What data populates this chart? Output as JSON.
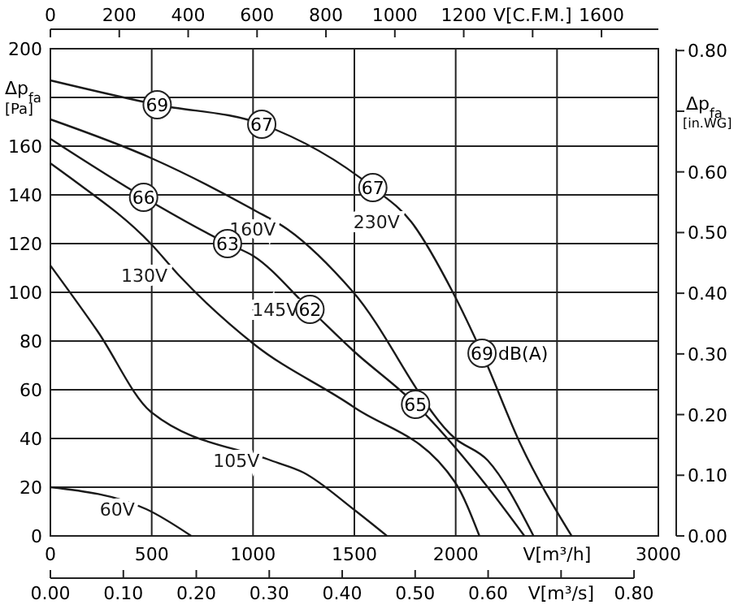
{
  "chart_data": {
    "type": "line",
    "xlabel": "V[m³/h]",
    "ylabel": "Δp$_{fa}$ [Pa]",
    "y2label": "Δp$_{fa}$ [in.WG]",
    "x2label": "V[C.F.M.]",
    "xlim": [
      0,
      3000
    ],
    "xticks": [
      0,
      500,
      1000,
      1500,
      2000,
      {
        "value": 2500,
        "label": null
      },
      3000
    ],
    "ylim": [
      0,
      200
    ],
    "yticks": [
      0,
      20,
      40,
      60,
      80,
      100,
      120,
      140,
      160,
      {
        "value": 180,
        "label": null
      },
      200
    ],
    "y2lim": [
      0,
      0.803
    ],
    "y2ticks": [
      {
        "value": 0,
        "label": "0.00"
      },
      {
        "value": 0.1,
        "label": "0.10"
      },
      {
        "value": 0.2,
        "label": "0.20"
      },
      {
        "value": 0.3,
        "label": "0.30"
      },
      {
        "value": 0.4,
        "label": "0.40"
      },
      {
        "value": 0.5,
        "label": "0.50"
      },
      {
        "value": 0.6,
        "label": "0.60"
      },
      {
        "value": 0.7,
        "label": null
      },
      {
        "value": 0.8,
        "label": "0.80"
      }
    ],
    "x2lim": [
      0,
      1765
    ],
    "x2ticks": [
      0,
      200,
      400,
      600,
      800,
      1000,
      1200,
      {
        "value": 1400,
        "label": null
      },
      1600
    ],
    "grid": true,
    "series": [
      {
        "name": "230V",
        "color": "#1a1a1a",
        "x": [
          0,
          527,
          1043,
          1591,
          1780,
          1986,
          2130,
          2318,
          2572
        ],
        "values": [
          187,
          177,
          169,
          143,
          129,
          100,
          75,
          38,
          0
        ]
      },
      {
        "name": "160V",
        "color": "#1a1a1a",
        "x": [
          0,
          500,
          1000,
          1168,
          1495,
          1997,
          2158,
          2384
        ],
        "values": [
          171,
          155,
          134,
          126,
          100,
          40,
          31,
          0
        ]
      },
      {
        "name": "145V",
        "color": "#1a1a1a",
        "x": [
          0,
          460,
          874,
          1000,
          1281,
          1495,
          1802,
          2158,
          2339
        ],
        "values": [
          163,
          139,
          120,
          115,
          93,
          76,
          54,
          20,
          0
        ]
      },
      {
        "name": "130V",
        "color": "#1a1a1a",
        "x": [
          0,
          99,
          495,
          634,
          1000,
          1495,
          1997,
          2117
        ],
        "values": [
          153,
          147,
          120,
          107,
          79,
          53,
          22,
          0
        ]
      },
      {
        "name": "105V",
        "color": "#1a1a1a",
        "x": [
          0,
          233,
          495,
          1088,
          1249,
          1495,
          1661
        ],
        "values": [
          111,
          84,
          51,
          31,
          26,
          11,
          0
        ]
      },
      {
        "name": "60V",
        "color": "#1a1a1a",
        "x": [
          0,
          473,
          695
        ],
        "values": [
          20,
          11,
          0
        ]
      }
    ],
    "annotations": [
      {
        "text": "69",
        "x": 527,
        "y": 177
      },
      {
        "text": "67",
        "x": 1043,
        "y": 169
      },
      {
        "text": "67",
        "x": 1591,
        "y": 143
      },
      {
        "text": "66",
        "x": 460,
        "y": 139
      },
      {
        "text": "63",
        "x": 874,
        "y": 120
      },
      {
        "text": "62",
        "x": 1281,
        "y": 93
      },
      {
        "text": "65",
        "x": 1802,
        "y": 54
      },
      {
        "text": "69",
        "x": 2130,
        "y": 75
      },
      "dB(A)",
      "0.00",
      "0.10",
      "0.20",
      "0.30",
      "0.40",
      "0.50",
      "0.60",
      "V[m³/s]",
      "0.80"
    ]
  }
}
